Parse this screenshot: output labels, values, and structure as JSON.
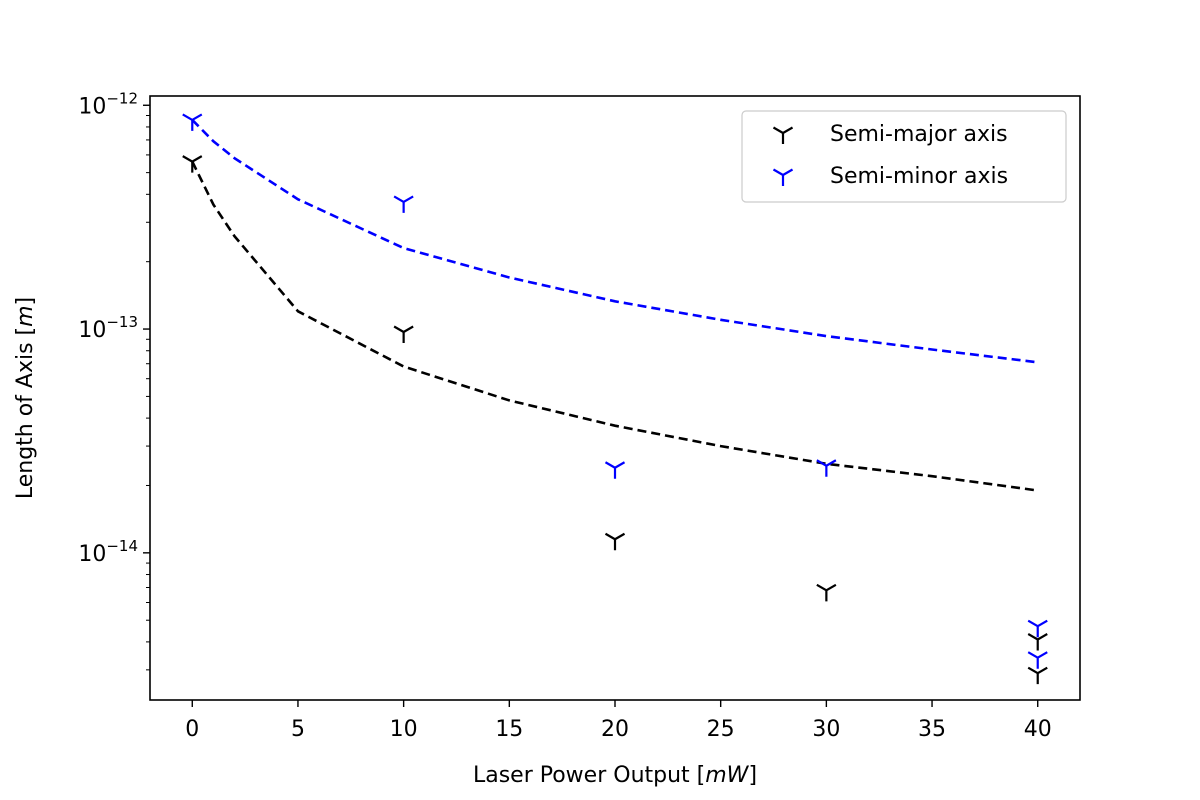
{
  "chart_data": {
    "type": "scatter",
    "xlabel_prefix": "Laser Power Output [",
    "xlabel_unit": "mW",
    "xlabel_suffix": "]",
    "ylabel_prefix": "Length of Axis [",
    "ylabel_unit": "m",
    "ylabel_suffix": "]",
    "y_scale": "log",
    "xlim": [
      -2,
      42
    ],
    "ylim": [
      2.2e-15,
      1.1e-12
    ],
    "x_ticks": [
      0,
      5,
      10,
      15,
      20,
      25,
      30,
      35,
      40
    ],
    "y_major_ticks": [
      {
        "value": 1e-12,
        "base": "10",
        "exp": "−12"
      },
      {
        "value": 1e-13,
        "base": "10",
        "exp": "−13"
      },
      {
        "value": 1e-14,
        "base": "10",
        "exp": "−14"
      }
    ],
    "grid": false,
    "legend_position": "top-right",
    "series": [
      {
        "name": "Semi-major axis",
        "color": "#000000",
        "marker": "tri_down",
        "points": [
          {
            "x": 0,
            "y": 5.6e-13
          },
          {
            "x": 10,
            "y": 9.7e-14
          },
          {
            "x": 20,
            "y": 1.15e-14
          },
          {
            "x": 30,
            "y": 6.8e-15
          },
          {
            "x": 40,
            "y": 4.1e-15
          },
          {
            "x": 40,
            "y": 2.9e-15
          }
        ],
        "fit": {
          "style": "dashed",
          "model": "1/x",
          "x_start": 0,
          "x_end": 40,
          "samples": [
            [
              0,
              5.6e-13
            ],
            [
              1,
              3.6e-13
            ],
            [
              2,
              2.6e-13
            ],
            [
              5,
              1.2e-13
            ],
            [
              10,
              6.8e-14
            ],
            [
              15,
              4.8e-14
            ],
            [
              20,
              3.7e-14
            ],
            [
              25,
              3e-14
            ],
            [
              30,
              2.5e-14
            ],
            [
              35,
              2.2e-14
            ],
            [
              40,
              1.9e-14
            ]
          ]
        }
      },
      {
        "name": "Semi-minor axis",
        "color": "#0000ff",
        "marker": "tri_down",
        "points": [
          {
            "x": 0,
            "y": 8.6e-13
          },
          {
            "x": 10,
            "y": 3.7e-13
          },
          {
            "x": 20,
            "y": 2.4e-14
          },
          {
            "x": 30,
            "y": 2.45e-14
          },
          {
            "x": 40,
            "y": 4.7e-15
          },
          {
            "x": 40,
            "y": 3.4e-15
          }
        ],
        "fit": {
          "style": "dashed",
          "model": "1/x",
          "x_start": 0,
          "x_end": 40,
          "samples": [
            [
              0,
              8.6e-13
            ],
            [
              1,
              6.9e-13
            ],
            [
              2,
              5.8e-13
            ],
            [
              5,
              3.8e-13
            ],
            [
              10,
              2.3e-13
            ],
            [
              15,
              1.7e-13
            ],
            [
              20,
              1.33e-13
            ],
            [
              25,
              1.1e-13
            ],
            [
              30,
              9.3e-14
            ],
            [
              35,
              8.1e-14
            ],
            [
              40,
              7.1e-14
            ]
          ]
        }
      }
    ]
  }
}
